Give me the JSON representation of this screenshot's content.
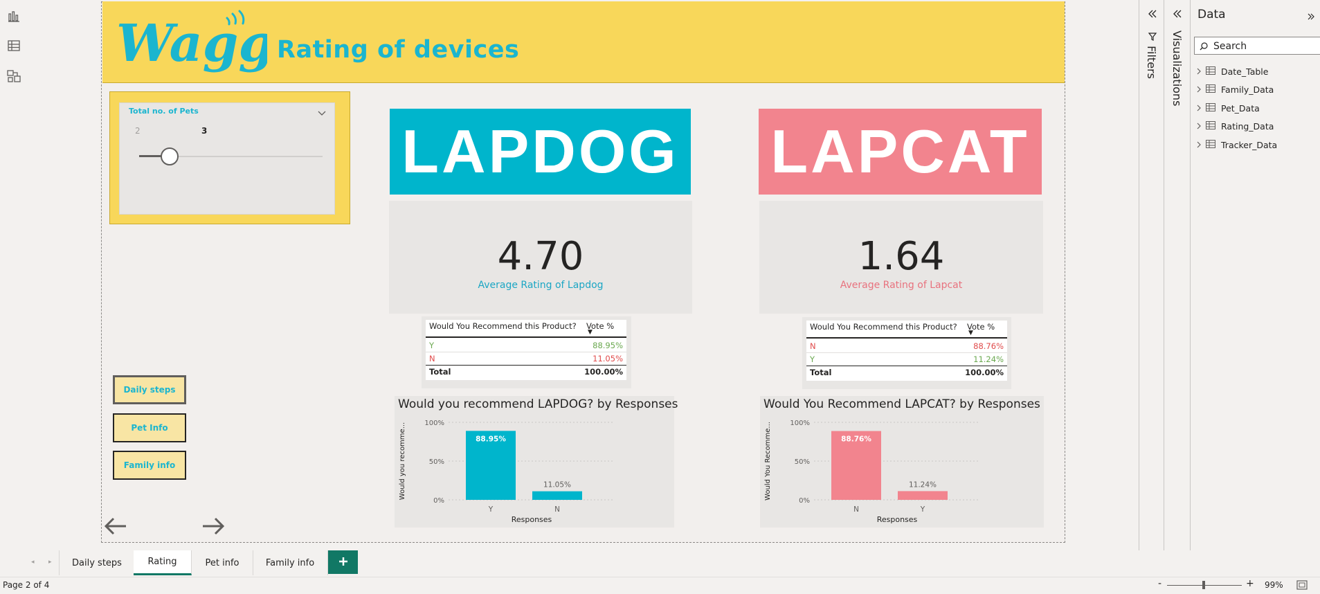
{
  "app": {
    "logo_text": "Waggle",
    "report_title": "Rating of devices"
  },
  "left_rail": [
    "report-view-icon",
    "table-view-icon",
    "model-view-icon"
  ],
  "slicer": {
    "label": "Total no. of Pets",
    "min_value": "2",
    "max_value": "3",
    "handle_position": 0.22
  },
  "nav_buttons": {
    "daily_steps": "Daily steps",
    "pet_info": "Pet Info",
    "family_info": "Family info"
  },
  "brands": {
    "lapdog": "LAPDOG",
    "lapcat": "LAPCAT",
    "lapdog_color": "#00b5cc",
    "lapcat_color": "#f2848e"
  },
  "cards": {
    "lapdog": {
      "value": "4.70",
      "label": "Average Rating of Lapdog",
      "label_color": "#1ba6c4"
    },
    "lapcat": {
      "value": "1.64",
      "label": "Average Rating of Lapcat",
      "label_color": "#e8727e"
    }
  },
  "tables": {
    "lapdog": {
      "headers": [
        "Would You Recommend this Product?",
        "Vote %"
      ],
      "rows": [
        {
          "label": "Y",
          "value": "88.95%"
        },
        {
          "label": "N",
          "value": "11.05%"
        }
      ],
      "total": {
        "label": "Total",
        "value": "100.00%"
      }
    },
    "lapcat": {
      "headers": [
        "Would You Recommend this Product?",
        "Vote %"
      ],
      "rows": [
        {
          "label": "N",
          "value": "88.76%"
        },
        {
          "label": "Y",
          "value": "11.24%"
        }
      ],
      "total": {
        "label": "Total",
        "value": "100.00%"
      }
    }
  },
  "chart_data": [
    {
      "type": "bar",
      "title": "Would you recommend LAPDOG? by Responses",
      "xlabel": "Responses",
      "ylabel": "Would you recomme...",
      "categories": [
        "Y",
        "N"
      ],
      "values": [
        88.95,
        11.05
      ],
      "data_labels": [
        "88.95%",
        "11.05%"
      ],
      "yticks": [
        "100%",
        "50%",
        "0%"
      ],
      "ylim": [
        0,
        100
      ],
      "color": "#00b5cc"
    },
    {
      "type": "bar",
      "title": "Would You Recommend LAPCAT? by Responses",
      "xlabel": "Responses",
      "ylabel": "Would You Recomme...",
      "categories": [
        "N",
        "Y"
      ],
      "values": [
        88.76,
        11.24
      ],
      "data_labels": [
        "88.76%",
        "11.24%"
      ],
      "yticks": [
        "100%",
        "50%",
        "0%"
      ],
      "ylim": [
        0,
        100
      ],
      "color": "#f2848e"
    }
  ],
  "panes": {
    "filters": "Filters",
    "visualizations": "Visualizations",
    "data": "Data",
    "search_placeholder": "Search"
  },
  "data_items": [
    "Date_Table",
    "Family_Data",
    "Pet_Data",
    "Rating_Data",
    "Tracker_Data"
  ],
  "tabs": [
    "Daily steps",
    "Rating",
    "Pet info",
    "Family info"
  ],
  "active_tab": "Rating",
  "status": {
    "page": "Page 2 of 4",
    "zoom": "99%"
  }
}
